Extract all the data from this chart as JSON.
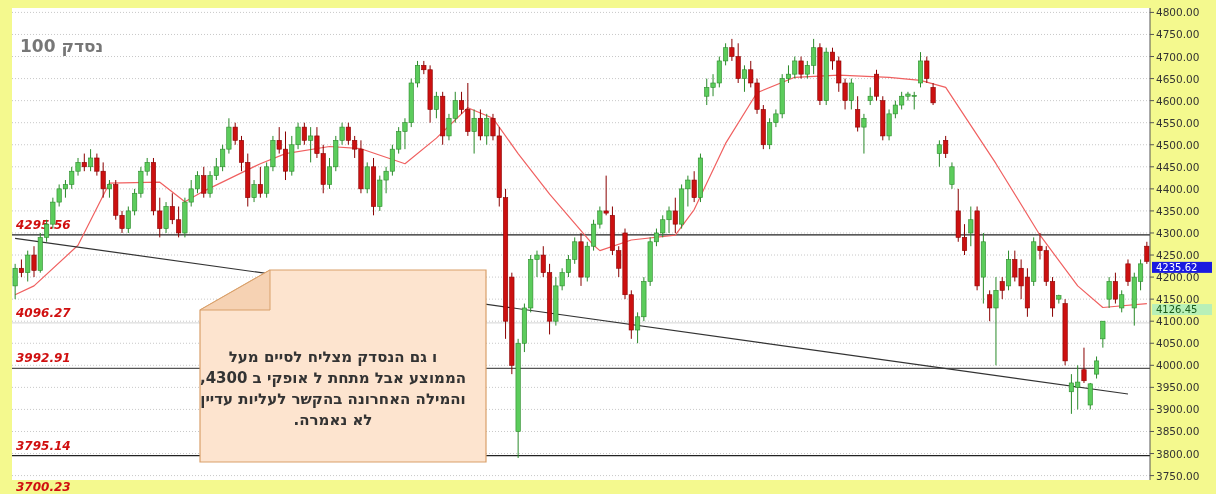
{
  "chart_data": {
    "type": "candlestick",
    "title": "נסדק 100",
    "categories": [
      null,
      null,
      null,
      null,
      null,
      null,
      null,
      null,
      null,
      null,
      null,
      null,
      null,
      null,
      null,
      null,
      null,
      null,
      null,
      null,
      null,
      null,
      null,
      null,
      null,
      null,
      null,
      null,
      null,
      null,
      null,
      null,
      null,
      null,
      null,
      null,
      null,
      null,
      null,
      null,
      null,
      null,
      null,
      null,
      null,
      null,
      null,
      null,
      null,
      null,
      null,
      null,
      null,
      null,
      null,
      null,
      null,
      null,
      null,
      null,
      null,
      null,
      null,
      null,
      null,
      null,
      null,
      null,
      null,
      null,
      null,
      null,
      null,
      null,
      null,
      null,
      null,
      null,
      null,
      null,
      null,
      null,
      null,
      null,
      null,
      null,
      null,
      null,
      null,
      null,
      null,
      null,
      null,
      null,
      null,
      null,
      null,
      null,
      null,
      null,
      null,
      null,
      null,
      null,
      null,
      null,
      null,
      null,
      null,
      null,
      null,
      null,
      null,
      null,
      null,
      null,
      null,
      null,
      null,
      null,
      null,
      null,
      null,
      null,
      null,
      null,
      null,
      null,
      null,
      null,
      null,
      null,
      null,
      null,
      null,
      null,
      null,
      null,
      null,
      null,
      null,
      null,
      null,
      null,
      null,
      null,
      null,
      null,
      null,
      null,
      null,
      null,
      null,
      null,
      null,
      null,
      null,
      null,
      null,
      null,
      null,
      null,
      null,
      null,
      null,
      null,
      null,
      null,
      null,
      null,
      null,
      null,
      null,
      null,
      null,
      null,
      null,
      null,
      null,
      null,
      null
    ],
    "ohlc": [
      [
        4180,
        4230,
        4150,
        4220
      ],
      [
        4220,
        4240,
        4200,
        4210
      ],
      [
        4210,
        4260,
        4190,
        4250
      ],
      [
        4250,
        4270,
        4200,
        4215
      ],
      [
        4215,
        4300,
        4210,
        4290
      ],
      [
        4290,
        4330,
        4280,
        4320
      ],
      [
        4320,
        4380,
        4310,
        4370
      ],
      [
        4370,
        4410,
        4360,
        4400
      ],
      [
        4400,
        4420,
        4380,
        4410
      ],
      [
        4410,
        4450,
        4400,
        4440
      ],
      [
        4440,
        4470,
        4430,
        4460
      ],
      [
        4460,
        4480,
        4440,
        4450
      ],
      [
        4450,
        4490,
        4440,
        4470
      ],
      [
        4470,
        4480,
        4430,
        4440
      ],
      [
        4440,
        4460,
        4380,
        4400
      ],
      [
        4400,
        4420,
        4380,
        4410
      ],
      [
        4410,
        4420,
        4330,
        4340
      ],
      [
        4340,
        4350,
        4300,
        4310
      ],
      [
        4310,
        4360,
        4300,
        4350
      ],
      [
        4350,
        4400,
        4340,
        4390
      ],
      [
        4390,
        4450,
        4380,
        4440
      ],
      [
        4440,
        4470,
        4430,
        4460
      ],
      [
        4460,
        4470,
        4340,
        4350
      ],
      [
        4350,
        4380,
        4290,
        4310
      ],
      [
        4310,
        4370,
        4300,
        4360
      ],
      [
        4360,
        4390,
        4320,
        4330
      ],
      [
        4330,
        4360,
        4290,
        4300
      ],
      [
        4300,
        4380,
        4290,
        4370
      ],
      [
        4370,
        4420,
        4360,
        4400
      ],
      [
        4400,
        4440,
        4390,
        4430
      ],
      [
        4430,
        4450,
        4380,
        4390
      ],
      [
        4390,
        4440,
        4380,
        4430
      ],
      [
        4430,
        4470,
        4420,
        4450
      ],
      [
        4450,
        4500,
        4440,
        4490
      ],
      [
        4490,
        4560,
        4480,
        4540
      ],
      [
        4540,
        4550,
        4500,
        4510
      ],
      [
        4510,
        4520,
        4440,
        4460
      ],
      [
        4460,
        4480,
        4360,
        4380
      ],
      [
        4380,
        4420,
        4370,
        4410
      ],
      [
        4410,
        4450,
        4380,
        4390
      ],
      [
        4390,
        4460,
        4380,
        4450
      ],
      [
        4450,
        4520,
        4440,
        4510
      ],
      [
        4510,
        4540,
        4480,
        4490
      ],
      [
        4490,
        4530,
        4420,
        4440
      ],
      [
        4440,
        4520,
        4430,
        4500
      ],
      [
        4500,
        4550,
        4490,
        4540
      ],
      [
        4540,
        4550,
        4500,
        4510
      ],
      [
        4510,
        4540,
        4460,
        4520
      ],
      [
        4520,
        4540,
        4470,
        4480
      ],
      [
        4480,
        4500,
        4390,
        4410
      ],
      [
        4410,
        4470,
        4400,
        4450
      ],
      [
        4450,
        4520,
        4440,
        4510
      ],
      [
        4510,
        4550,
        4500,
        4540
      ],
      [
        4540,
        4550,
        4500,
        4510
      ],
      [
        4510,
        4520,
        4470,
        4490
      ],
      [
        4490,
        4510,
        4390,
        4400
      ],
      [
        4400,
        4460,
        4390,
        4450
      ],
      [
        4450,
        4470,
        4340,
        4360
      ],
      [
        4360,
        4430,
        4350,
        4420
      ],
      [
        4420,
        4450,
        4390,
        4440
      ],
      [
        4440,
        4500,
        4430,
        4490
      ],
      [
        4490,
        4540,
        4480,
        4530
      ],
      [
        4530,
        4560,
        4490,
        4550
      ],
      [
        4550,
        4650,
        4540,
        4640
      ],
      [
        4640,
        4690,
        4630,
        4680
      ],
      [
        4680,
        4690,
        4660,
        4670
      ],
      [
        4670,
        4680,
        4550,
        4580
      ],
      [
        4580,
        4620,
        4560,
        4610
      ],
      [
        4610,
        4620,
        4500,
        4520
      ],
      [
        4520,
        4570,
        4510,
        4560
      ],
      [
        4560,
        4620,
        4550,
        4600
      ],
      [
        4600,
        4620,
        4570,
        4580
      ],
      [
        4580,
        4640,
        4520,
        4530
      ],
      [
        4530,
        4580,
        4480,
        4560
      ],
      [
        4560,
        4580,
        4510,
        4520
      ],
      [
        4520,
        4570,
        4500,
        4560
      ],
      [
        4560,
        4570,
        4510,
        4520
      ],
      [
        4520,
        4540,
        4360,
        4380
      ],
      [
        4380,
        4400,
        4060,
        4100
      ],
      [
        4200,
        4210,
        3980,
        4000
      ],
      [
        3850,
        4060,
        3790,
        4050
      ],
      [
        4050,
        4140,
        4030,
        4130
      ],
      [
        4130,
        4250,
        4120,
        4240
      ],
      [
        4240,
        4260,
        4200,
        4250
      ],
      [
        4250,
        4270,
        4200,
        4210
      ],
      [
        4210,
        4230,
        4070,
        4100
      ],
      [
        4100,
        4200,
        4090,
        4180
      ],
      [
        4180,
        4220,
        4170,
        4210
      ],
      [
        4210,
        4250,
        4200,
        4240
      ],
      [
        4240,
        4290,
        4230,
        4280
      ],
      [
        4280,
        4300,
        4180,
        4200
      ],
      [
        4200,
        4280,
        4190,
        4270
      ],
      [
        4270,
        4330,
        4260,
        4320
      ],
      [
        4320,
        4360,
        4310,
        4350
      ],
      [
        4350,
        4430,
        4340,
        4345
      ],
      [
        4340,
        4360,
        4250,
        4260
      ],
      [
        4260,
        4270,
        4200,
        4220
      ],
      [
        4300,
        4310,
        4150,
        4160
      ],
      [
        4160,
        4170,
        4060,
        4080
      ],
      [
        4080,
        4120,
        4050,
        4110
      ],
      [
        4110,
        4200,
        4100,
        4190
      ],
      [
        4190,
        4290,
        4180,
        4280
      ],
      [
        4280,
        4310,
        4270,
        4300
      ],
      [
        4300,
        4340,
        4290,
        4330
      ],
      [
        4330,
        4360,
        4300,
        4350
      ],
      [
        4350,
        4380,
        4300,
        4320
      ],
      [
        4320,
        4410,
        4310,
        4400
      ],
      [
        4400,
        4430,
        4360,
        4420
      ],
      [
        4420,
        4440,
        4370,
        4380
      ],
      [
        4380,
        4480,
        4370,
        4470
      ],
      [
        4610,
        4650,
        4590,
        4630
      ],
      [
        4630,
        4660,
        4610,
        4640
      ],
      [
        4640,
        4700,
        4630,
        4690
      ],
      [
        4690,
        4730,
        4680,
        4720
      ],
      [
        4720,
        4740,
        4690,
        4700
      ],
      [
        4700,
        4730,
        4640,
        4650
      ],
      [
        4650,
        4680,
        4620,
        4670
      ],
      [
        4670,
        4690,
        4630,
        4640
      ],
      [
        4640,
        4650,
        4570,
        4580
      ],
      [
        4580,
        4590,
        4490,
        4500
      ],
      [
        4500,
        4560,
        4490,
        4550
      ],
      [
        4550,
        4580,
        4540,
        4570
      ],
      [
        4570,
        4660,
        4560,
        4650
      ],
      [
        4650,
        4680,
        4640,
        4660
      ],
      [
        4660,
        4700,
        4650,
        4690
      ],
      [
        4690,
        4700,
        4650,
        4660
      ],
      [
        4660,
        4690,
        4650,
        4680
      ],
      [
        4680,
        4740,
        4660,
        4720
      ],
      [
        4720,
        4730,
        4590,
        4600
      ],
      [
        4600,
        4720,
        4590,
        4710
      ],
      [
        4710,
        4720,
        4670,
        4690
      ],
      [
        4690,
        4700,
        4620,
        4640
      ],
      [
        4640,
        4650,
        4580,
        4600
      ],
      [
        4600,
        4650,
        4580,
        4640
      ],
      [
        4580,
        4610,
        4530,
        4540
      ],
      [
        4540,
        4570,
        4480,
        4560
      ],
      [
        4600,
        4630,
        4590,
        4610
      ],
      [
        4660,
        4670,
        4600,
        4610
      ],
      [
        4600,
        4610,
        4510,
        4520
      ],
      [
        4520,
        4580,
        4510,
        4570
      ],
      [
        4570,
        4600,
        4560,
        4590
      ],
      [
        4590,
        4620,
        4580,
        4610
      ],
      [
        4610,
        4620,
        4600,
        4615
      ],
      [
        4610,
        4620,
        4580,
        4612
      ],
      [
        4640,
        4710,
        4630,
        4690
      ],
      [
        4690,
        4700,
        4640,
        4650
      ],
      [
        4630,
        4640,
        4590,
        4595
      ],
      [
        4480,
        4510,
        4450,
        4500
      ],
      [
        4510,
        4520,
        4470,
        4480
      ],
      [
        4410,
        4460,
        4400,
        4450
      ],
      [
        4350,
        4400,
        4280,
        4290
      ],
      [
        4290,
        4320,
        4250,
        4260
      ],
      [
        4300,
        4360,
        4270,
        4330
      ],
      [
        4350,
        4360,
        4170,
        4180
      ],
      [
        4200,
        4300,
        4140,
        4280
      ],
      [
        4160,
        4170,
        4100,
        4130
      ],
      [
        4130,
        4200,
        4000,
        4170
      ],
      [
        4190,
        4200,
        4150,
        4170
      ],
      [
        4180,
        4260,
        4170,
        4240
      ],
      [
        4240,
        4260,
        4190,
        4200
      ],
      [
        4220,
        4240,
        4150,
        4180
      ],
      [
        4200,
        4220,
        4110,
        4130
      ],
      [
        4190,
        4290,
        4180,
        4280
      ],
      [
        4270,
        4300,
        4240,
        4260
      ],
      [
        4260,
        4270,
        4180,
        4190
      ],
      [
        4190,
        4200,
        4110,
        4130
      ],
      [
        4150,
        4160,
        4140,
        4158
      ],
      [
        4140,
        4150,
        4000,
        4010
      ],
      [
        3940,
        3980,
        3890,
        3960
      ],
      [
        3950,
        4000,
        3900,
        3962
      ],
      [
        3990,
        4040,
        3960,
        3965
      ],
      [
        3910,
        3960,
        3900,
        3958
      ],
      [
        3980,
        4020,
        3970,
        4010
      ],
      [
        4060,
        4100,
        4040,
        4100
      ],
      [
        4150,
        4200,
        4130,
        4190
      ],
      [
        4190,
        4210,
        4140,
        4150
      ],
      [
        4130,
        4170,
        4120,
        4160
      ],
      [
        4230,
        4240,
        4180,
        4190
      ],
      [
        4130,
        4210,
        4090,
        4200
      ],
      [
        4190,
        4240,
        4170,
        4230
      ],
      [
        4270,
        4280,
        4230,
        4235.62
      ]
    ],
    "series": [
      {
        "type": "line",
        "color": "#f06060",
        "values": [
          4160,
          null,
          null,
          4180,
          null,
          null,
          null,
          null,
          null,
          null,
          4272,
          null,
          null,
          null,
          null,
          4413,
          null,
          null,
          null,
          null,
          null,
          null,
          null,
          4415,
          null,
          null,
          null,
          4371,
          null,
          null,
          4395,
          null,
          null,
          null,
          null,
          null,
          null,
          null,
          null,
          4457,
          null,
          null,
          null,
          4480,
          null,
          null,
          null,
          null,
          null,
          null,
          4496,
          null,
          null,
          null,
          null,
          4491,
          null,
          null,
          null,
          null,
          null,
          null,
          4457,
          null,
          null,
          null,
          null,
          4515,
          null,
          null,
          null,
          null,
          4584,
          null,
          null,
          null,
          4560,
          null,
          null,
          null,
          4480,
          null,
          null,
          null,
          null,
          4388,
          null,
          null,
          null,
          null,
          null,
          null,
          4272,
          4260,
          null,
          null,
          null,
          null,
          4284,
          null,
          null,
          null,
          null,
          null,
          null,
          4295,
          null,
          null,
          4353,
          null,
          null,
          null,
          null,
          4503,
          null,
          null,
          null,
          null,
          4618,
          null,
          null,
          null,
          null,
          null,
          4653,
          null,
          null,
          null,
          null,
          null,
          null,
          4658,
          null,
          null,
          null,
          null,
          null,
          null,
          null,
          4653,
          null,
          null,
          null,
          null,
          4646,
          null,
          null,
          null,
          4630,
          null,
          null,
          null,
          null,
          null,
          null,
          null,
          4457,
          null,
          null,
          null,
          null,
          null,
          null,
          4295,
          null,
          null,
          null,
          null,
          null,
          4180,
          null,
          null,
          null,
          4131,
          null,
          null,
          null,
          null,
          null,
          null,
          4140
        ]
      },
      {
        "type": "line",
        "color": "#333333",
        "values": [
          4288,
          null,
          null,
          null,
          null,
          null,
          null,
          null,
          null,
          null,
          null,
          null,
          null,
          null,
          null,
          null,
          null,
          null,
          null,
          null,
          null,
          null,
          null,
          null,
          null,
          null,
          null,
          null,
          null,
          null,
          null,
          null,
          null,
          null,
          null,
          null,
          null,
          null,
          null,
          null,
          null,
          null,
          null,
          null,
          null,
          null,
          null,
          null,
          null,
          null,
          null,
          null,
          null,
          null,
          null,
          null,
          null,
          null,
          null,
          null,
          null,
          null,
          null,
          null,
          null,
          null,
          null,
          null,
          null,
          null,
          null,
          null,
          null,
          null,
          null,
          null,
          null,
          null,
          null,
          null,
          null,
          null,
          null,
          null,
          null,
          null,
          null,
          null,
          null,
          null,
          null,
          null,
          null,
          null,
          null,
          null,
          null,
          null,
          null,
          null,
          null,
          null,
          null,
          null,
          null,
          null,
          null,
          null,
          null,
          null,
          null,
          null,
          null,
          null,
          null,
          null,
          null,
          null,
          null,
          null,
          null,
          null,
          null,
          null,
          null,
          null,
          null,
          null,
          null,
          null,
          null,
          null,
          null,
          null,
          null,
          null,
          null,
          null,
          null,
          null,
          null,
          null,
          null,
          null,
          null,
          null,
          null,
          null,
          null,
          null,
          null,
          null,
          null,
          null,
          null,
          null,
          null,
          null,
          null,
          null,
          null,
          null,
          null,
          null,
          null,
          null,
          null,
          null,
          null,
          null,
          null,
          null,
          null,
          null,
          null,
          null,
          null,
          3935,
          null,
          null,
          null
        ]
      }
    ],
    "ylim": [
      3740,
      4810
    ],
    "yticks": [
      {
        "value": 3750,
        "label": "3750.00"
      },
      {
        "value": 3800,
        "label": "3800.00"
      },
      {
        "value": 3850,
        "label": "3850.00"
      },
      {
        "value": 3900,
        "label": "3900.00"
      },
      {
        "value": 3950,
        "label": "3950.00"
      },
      {
        "value": 4000,
        "label": "4000.00"
      },
      {
        "value": 4050,
        "label": "4050.00"
      },
      {
        "value": 4100,
        "label": "4100.00"
      },
      {
        "value": 4150,
        "label": "4150.00"
      },
      {
        "value": 4200,
        "label": "4200.00"
      },
      {
        "value": 4250,
        "label": "4250.00"
      },
      {
        "value": 4300,
        "label": "4300.00"
      },
      {
        "value": 4350,
        "label": "4350.00"
      },
      {
        "value": 4400,
        "label": "4400.00"
      },
      {
        "value": 4450,
        "label": "4450.00"
      },
      {
        "value": 4500,
        "label": "4500.00"
      },
      {
        "value": 4550,
        "label": "4550.00"
      },
      {
        "value": 4600,
        "label": "4600.00"
      },
      {
        "value": 4650,
        "label": "4650.00"
      },
      {
        "value": 4700,
        "label": "4700.00"
      },
      {
        "value": 4750,
        "label": "4750.00"
      },
      {
        "value": 4800,
        "label": "4800.00"
      }
    ],
    "ref_lines": [
      {
        "axis": "y",
        "value": 4295.56,
        "label": "4295.56",
        "color": "#222222"
      },
      {
        "axis": "y",
        "value": 4096.27,
        "label": "4096.27",
        "color": "#dddddd"
      },
      {
        "axis": "y",
        "value": 3992.91,
        "label": "3992.91",
        "color": "#555555"
      },
      {
        "axis": "y",
        "value": 3795.14,
        "label": "3795.14",
        "color": "#222222"
      }
    ],
    "annotations": [
      "ו גם הנסדק מצליח לסיים מעל\nהממוצע אבל מתחת ל אופקי ב 4300,\nוהמילה האחרונה בהקשר לעליות עדיין\nלא נאמרה.",
      "3700.23",
      "4235.62",
      "4126.45"
    ],
    "grid": "y"
  }
}
